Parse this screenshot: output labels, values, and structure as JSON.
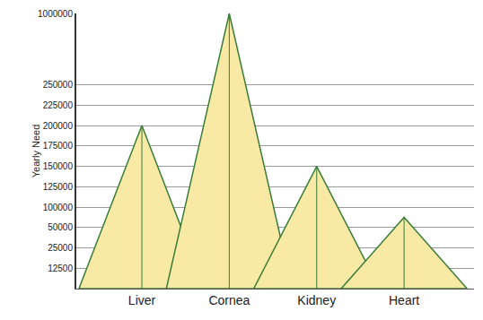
{
  "chart_data": {
    "type": "triangle",
    "y_label": "Yearly Need",
    "categories": [
      "Liver",
      "Cornea",
      "Kidney",
      "Heart"
    ],
    "values": [
      200000,
      1000000,
      150000,
      75000
    ],
    "color": "#f8eaa4",
    "ylim": [
      0,
      1000000
    ],
    "yticks": [
      12500,
      25000,
      50000,
      100000,
      125000,
      150000,
      175000,
      200000,
      225000,
      250000,
      1000000
    ],
    "grid": true
  }
}
